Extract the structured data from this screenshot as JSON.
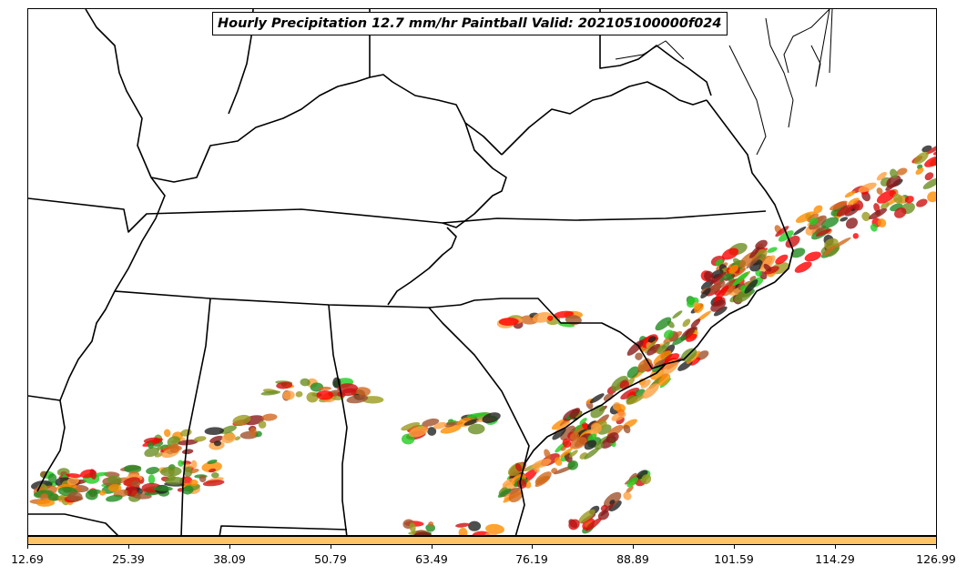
{
  "title": "Hourly Precipitation 12.7 mm/hr Paintball Valid: 202105100000f024",
  "colorbar": {
    "color": "#ffc466",
    "ticks": [
      "12.69",
      "25.39",
      "38.09",
      "50.79",
      "63.49",
      "76.19",
      "88.89",
      "101.59",
      "114.29",
      "126.99"
    ]
  },
  "member_colors": [
    "#ff0000",
    "#cc1111",
    "#8b1a1a",
    "#a0522d",
    "#ff8c00",
    "#ffa040",
    "#d2691e",
    "#22cc22",
    "#228b22",
    "#6b8e23",
    "#9a9a20",
    "#222222"
  ]
}
